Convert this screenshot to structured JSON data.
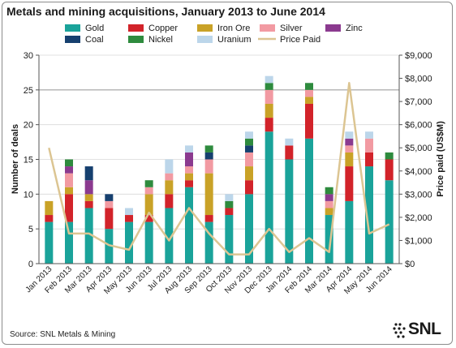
{
  "title": "Metals and mining acquisitions, January 2013 to June 2014",
  "source": "Source: SNL Metals & Mining",
  "logo_text": "SNL",
  "chart_data": {
    "type": "bar",
    "stacked": true,
    "categories": [
      "Jan 2013",
      "Feb 2013",
      "Mar 2013",
      "Apr 2013",
      "May 2013",
      "Jun 2013",
      "Jul 2013",
      "Aug 2013",
      "Sep 2013",
      "Oct 2013",
      "Nov 2013",
      "Dec 2013",
      "Jan 2014",
      "Feb 2014",
      "Mar 2014",
      "Apr 2014",
      "May 2014",
      "Jun 2014"
    ],
    "ylabel": "Number of deals",
    "y2label": "Price paid (US$M)",
    "ylim": [
      0,
      30
    ],
    "yticks": [
      "0",
      "5",
      "10",
      "15",
      "20",
      "25",
      "30"
    ],
    "y2lim": [
      0,
      9000
    ],
    "y2ticks": [
      "$0",
      "$1,000",
      "$2,000",
      "$3,000",
      "$4,000",
      "$5,000",
      "$6,000",
      "$7,000",
      "$8,000",
      "$9,000"
    ],
    "legend_position": "top",
    "series": [
      {
        "name": "Gold",
        "color": "#1aa39a",
        "values": [
          6,
          6,
          8,
          5,
          6,
          6,
          8,
          11,
          6,
          7,
          10,
          19,
          15,
          18,
          7,
          9,
          14,
          12
        ]
      },
      {
        "name": "Copper",
        "color": "#d2232a",
        "values": [
          1,
          4,
          1,
          3,
          1,
          1,
          2,
          1,
          1,
          1,
          2,
          2,
          2,
          5,
          0,
          5,
          2,
          3
        ]
      },
      {
        "name": "Iron Ore",
        "color": "#c9a227",
        "values": [
          2,
          1,
          1,
          0,
          0,
          3,
          2,
          1,
          6,
          0,
          2,
          2,
          0,
          1,
          1,
          2,
          0,
          0
        ]
      },
      {
        "name": "Silver",
        "color": "#f29aa2",
        "values": [
          0,
          2,
          0,
          1,
          0,
          1,
          1,
          1,
          2,
          0,
          2,
          2,
          0,
          1,
          1,
          1,
          2,
          0
        ]
      },
      {
        "name": "Zinc",
        "color": "#8b3a8f",
        "values": [
          0,
          1,
          2,
          0,
          0,
          0,
          0,
          2,
          0,
          0,
          0,
          0,
          0,
          0,
          1,
          1,
          0,
          0
        ]
      },
      {
        "name": "Coal",
        "color": "#16406f",
        "values": [
          0,
          0,
          2,
          1,
          0,
          0,
          0,
          0,
          1,
          0,
          1,
          0,
          0,
          0,
          0,
          0,
          0,
          0
        ]
      },
      {
        "name": "Nickel",
        "color": "#2e8b3e",
        "values": [
          0,
          1,
          0,
          0,
          0,
          1,
          0,
          0,
          1,
          1,
          1,
          1,
          0,
          1,
          1,
          0,
          0,
          1
        ]
      },
      {
        "name": "Uranium",
        "color": "#bcd6ea",
        "values": [
          0,
          0,
          0,
          0,
          1,
          0,
          2,
          1,
          0,
          1,
          1,
          1,
          1,
          0,
          0,
          1,
          1,
          0
        ]
      }
    ],
    "line_series": {
      "name": "Price Paid",
      "color": "#dcc592",
      "axis": "right",
      "values": [
        5000,
        1300,
        1300,
        800,
        600,
        2200,
        1000,
        2400,
        1300,
        400,
        400,
        1500,
        500,
        1100,
        500,
        7800,
        1300,
        1700
      ]
    }
  }
}
